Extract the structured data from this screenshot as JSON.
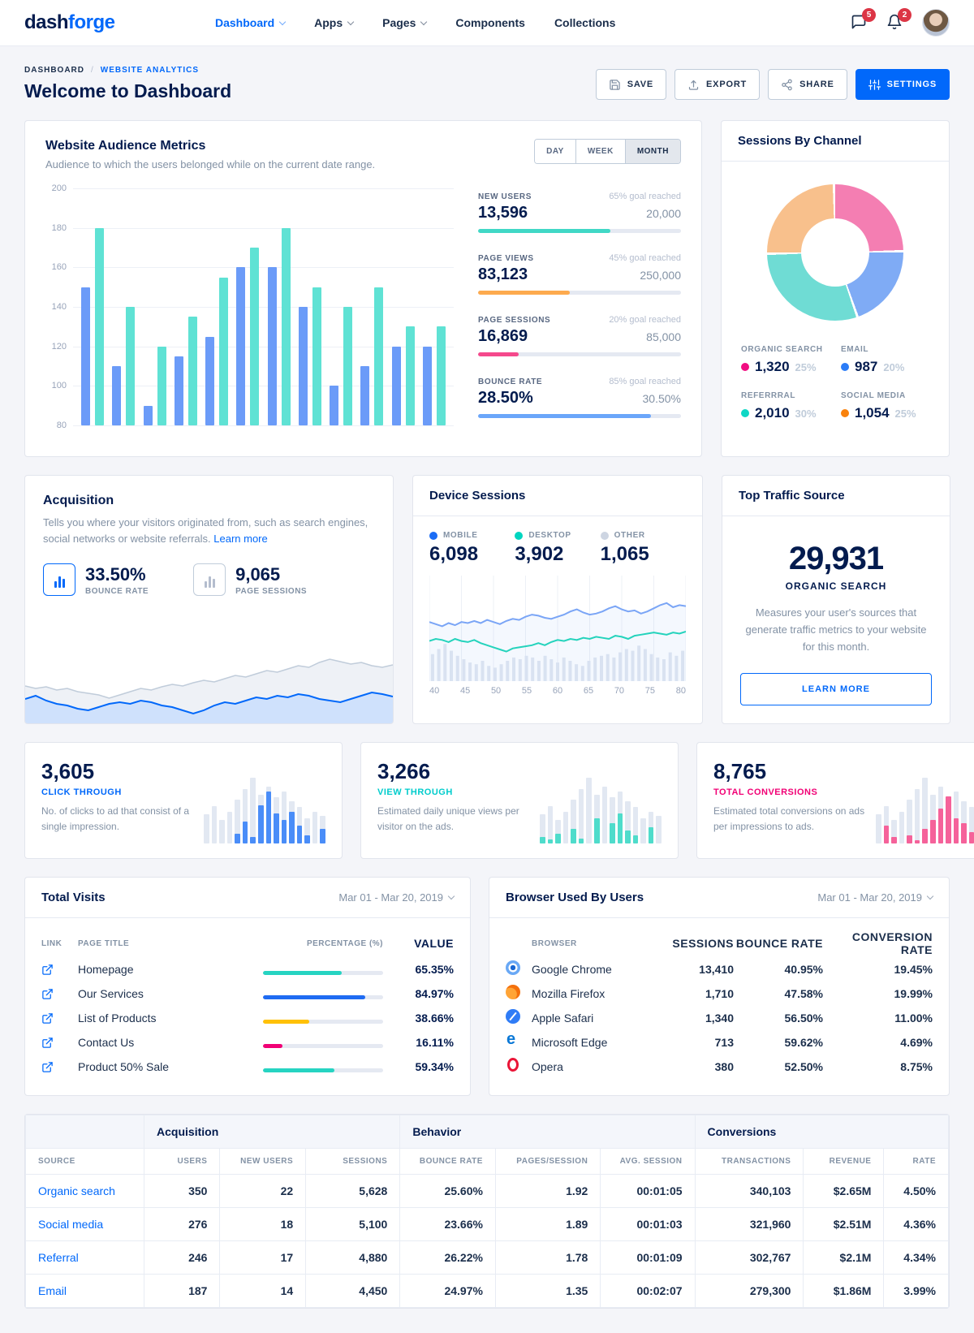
{
  "navbar": {
    "brand_dash": "dash",
    "brand_forge": "forge",
    "items": [
      {
        "label": "Dashboard",
        "active": true,
        "caret": true
      },
      {
        "label": "Apps",
        "active": false,
        "caret": true
      },
      {
        "label": "Pages",
        "active": false,
        "caret": true
      },
      {
        "label": "Components",
        "active": false,
        "caret": false
      },
      {
        "label": "Collections",
        "active": false,
        "caret": false
      }
    ],
    "messages_badge": "5",
    "notifications_badge": "2"
  },
  "page_header": {
    "breadcrumb_root": "DASHBOARD",
    "breadcrumb_sep": "/",
    "breadcrumb_current": "WEBSITE ANALYTICS",
    "title": "Welcome to Dashboard",
    "save_label": "SAVE",
    "export_label": "EXPORT",
    "share_label": "SHARE",
    "settings_label": "SETTINGS"
  },
  "audience": {
    "title": "Website Audience Metrics",
    "subtitle": "Audience to which the users belonged while on the current date range.",
    "toggles": [
      {
        "label": "DAY",
        "active": false
      },
      {
        "label": "WEEK",
        "active": false
      },
      {
        "label": "MONTH",
        "active": true
      }
    ],
    "metrics": [
      {
        "label": "NEW USERS",
        "goal": "65% goal reached",
        "value": "13,596",
        "target": "20,000",
        "pct": 65,
        "color": "#41d8c6"
      },
      {
        "label": "PAGE VIEWS",
        "goal": "45% goal reached",
        "value": "83,123",
        "target": "250,000",
        "pct": 45,
        "color": "#fdaa4e"
      },
      {
        "label": "PAGE SESSIONS",
        "goal": "20% goal reached",
        "value": "16,869",
        "target": "85,000",
        "pct": 20,
        "color": "#f5498c"
      },
      {
        "label": "BOUNCE RATE",
        "goal": "85% goal reached",
        "value": "28.50%",
        "target": "30.50%",
        "pct": 85,
        "color": "#6ba6fa"
      }
    ],
    "chart": {
      "type": "bar",
      "ylim": [
        80,
        200
      ],
      "yticks": [
        200,
        180,
        160,
        140,
        120,
        100,
        80
      ],
      "series": [
        {
          "name": "current",
          "color": "#6b9bf8",
          "values": [
            150,
            110,
            90,
            115,
            125,
            160,
            160,
            140,
            100,
            110,
            120,
            120
          ]
        },
        {
          "name": "previous",
          "color": "#5fe2d4",
          "values": [
            180,
            140,
            120,
            135,
            155,
            170,
            180,
            150,
            140,
            150,
            130,
            130
          ]
        }
      ]
    }
  },
  "channel": {
    "title": "Sessions By Channel",
    "chart": {
      "type": "donut",
      "slices": [
        {
          "label": "ORGANIC SEARCH",
          "value": "1,320",
          "pct_label": "25%",
          "pct": 25,
          "dot": "#f10d81",
          "slice": "#f47eb2"
        },
        {
          "label": "EMAIL",
          "value": "987",
          "pct_label": "20%",
          "pct": 20,
          "dot": "#2b7cf7",
          "slice": "#7fabf5"
        },
        {
          "label": "REFERRRAL",
          "value": "2,010",
          "pct_label": "30%",
          "pct": 30,
          "dot": "#0fd7c5",
          "slice": "#6fdcd4"
        },
        {
          "label": "SOCIAL MEDIA",
          "value": "1,054",
          "pct_label": "25%",
          "pct": 25,
          "dot": "#f9820c",
          "slice": "#f8c08c"
        }
      ]
    }
  },
  "acquisition": {
    "title": "Acquisition",
    "desc_before_link": "Tells you where your visitors originated from, such as search engines, social networks or website referrals. ",
    "link_label": "Learn more",
    "stats": [
      {
        "value": "33.50%",
        "label": "BOUNCE RATE",
        "accent": true
      },
      {
        "value": "9,065",
        "label": "PAGE SESSIONS",
        "accent": false
      }
    ],
    "chart": {
      "type": "area",
      "series": [
        {
          "name": "sessions",
          "line": "#c0ccda",
          "fill": "#eef1f6",
          "values": [
            46,
            43,
            45,
            41,
            43,
            39,
            37,
            35,
            31,
            35,
            39,
            43,
            41,
            45,
            48,
            46,
            50,
            53,
            51,
            55,
            59,
            57,
            61,
            65,
            63,
            67,
            71,
            69,
            75,
            79,
            76,
            73,
            75,
            71,
            69,
            72
          ]
        },
        {
          "name": "bounce",
          "line": "#0168fa",
          "fill": "#cfe1fc",
          "values": [
            30,
            34,
            28,
            24,
            22,
            18,
            16,
            20,
            24,
            26,
            24,
            28,
            26,
            22,
            20,
            16,
            12,
            16,
            22,
            26,
            24,
            28,
            32,
            30,
            34,
            32,
            36,
            34,
            30,
            28,
            26,
            30,
            34,
            38,
            36,
            33
          ]
        }
      ]
    }
  },
  "device": {
    "title": "Device Sessions",
    "legend": [
      {
        "label": "MOBILE",
        "value": "6,098",
        "dot": "#1a6cf5"
      },
      {
        "label": "DESKTOP",
        "value": "3,902",
        "dot": "#00d5c0"
      },
      {
        "label": "OTHER",
        "value": "1,065",
        "dot": "#cdd5e2"
      }
    ],
    "chart": {
      "type": "line+bar",
      "xticks": [
        40,
        45,
        50,
        55,
        60,
        65,
        70,
        75,
        80
      ],
      "mobile": [
        56,
        54,
        52,
        55,
        53,
        56,
        55,
        57,
        55,
        58,
        56,
        54,
        57,
        59,
        58,
        61,
        63,
        62,
        60,
        59,
        61,
        63,
        66,
        68,
        65,
        63,
        64,
        66,
        69,
        71,
        68,
        66,
        67,
        64,
        66,
        69,
        72,
        74,
        70,
        72,
        71
      ],
      "desktop": [
        38,
        40,
        39,
        37,
        40,
        38,
        37,
        39,
        36,
        34,
        32,
        30,
        28,
        31,
        32,
        33,
        34,
        36,
        34,
        37,
        39,
        38,
        40,
        39,
        41,
        40,
        42,
        41,
        40,
        43,
        42,
        40,
        43,
        44,
        45,
        46,
        45,
        44,
        46,
        45,
        47
      ],
      "other": [
        16,
        19,
        22,
        18,
        15,
        13,
        11,
        10,
        12,
        9,
        8,
        10,
        12,
        14,
        13,
        15,
        14,
        12,
        15,
        13,
        11,
        14,
        12,
        10,
        9,
        12,
        14,
        15,
        16,
        14,
        17,
        19,
        18,
        21,
        19,
        16,
        14,
        13,
        17,
        15,
        18
      ],
      "mobile_color": "#7aa5f6",
      "desktop_color": "#24d3bc",
      "other_color": "#e2e8f2"
    }
  },
  "traffic": {
    "title": "Top Traffic Source",
    "value": "29,931",
    "label": "ORGANIC SEARCH",
    "desc": "Measures your user's sources that generate traffic metrics to your website for this month.",
    "button_label": "LEARN MORE"
  },
  "stat_cards": [
    {
      "value": "3,605",
      "label": "CLICK THROUGH",
      "label_color": "#0168fa",
      "desc": "No. of clicks to ad that consist of a single impression.",
      "bar_color": "#4a8df8",
      "bg": [
        35,
        45,
        28,
        38,
        52,
        65,
        78,
        58,
        68,
        55,
        62,
        50,
        44,
        30,
        38,
        33
      ],
      "fg": [
        0,
        0,
        0,
        0,
        12,
        26,
        8,
        46,
        62,
        36,
        28,
        38,
        22,
        10,
        0,
        18
      ]
    },
    {
      "value": "3,266",
      "label": "VIEW THROUGH",
      "label_color": "#00cccc",
      "desc": "Estimated daily unique views per visitor on the ads.",
      "bar_color": "#4fdccb",
      "bg": [
        35,
        45,
        28,
        38,
        52,
        65,
        78,
        58,
        68,
        55,
        62,
        50,
        44,
        30,
        38,
        33
      ],
      "fg": [
        8,
        5,
        12,
        0,
        18,
        6,
        0,
        30,
        0,
        24,
        36,
        16,
        10,
        0,
        20,
        0
      ]
    },
    {
      "value": "8,765",
      "label": "TOTAL CONVERSIONS",
      "label_color": "#f10075",
      "desc": "Estimated total conversions on ads per impressions to ads.",
      "bar_color": "#f5629a",
      "bg": [
        35,
        45,
        28,
        38,
        52,
        65,
        78,
        58,
        68,
        55,
        62,
        50,
        44,
        30,
        38,
        33
      ],
      "fg": [
        0,
        22,
        8,
        0,
        10,
        4,
        18,
        28,
        42,
        56,
        30,
        24,
        14,
        6,
        0,
        0
      ]
    }
  ],
  "total_visits": {
    "title": "Total Visits",
    "date_range": "Mar 01 - Mar 20, 2019",
    "columns": [
      "LINK",
      "PAGE TITLE",
      "PERCENTAGE (%)",
      "VALUE"
    ],
    "rows": [
      {
        "page": "Homepage",
        "pct_label": "65.35%",
        "pct": 65.35,
        "color": "#26d4c2"
      },
      {
        "page": "Our Services",
        "pct_label": "84.97%",
        "pct": 84.97,
        "color": "#1f6bf2"
      },
      {
        "page": "List of Products",
        "pct_label": "38.66%",
        "pct": 38.66,
        "color": "#ffc107"
      },
      {
        "page": "Contact Us",
        "pct_label": "16.11%",
        "pct": 16.11,
        "color": "#f10075"
      },
      {
        "page": "Product 50% Sale",
        "pct_label": "59.34%",
        "pct": 59.34,
        "color": "#26d4c2"
      }
    ]
  },
  "browsers": {
    "title": "Browser Used By Users",
    "date_range": "Mar 01 - Mar 20, 2019",
    "columns": [
      "BROWSER",
      "SESSIONS",
      "BOUNCE RATE",
      "CONVERSION RATE"
    ],
    "rows": [
      {
        "browser": "Google Chrome",
        "icon": "chrome",
        "sessions": "13,410",
        "bounce": "40.95%",
        "conversion": "19.45%"
      },
      {
        "browser": "Mozilla Firefox",
        "icon": "firefox",
        "sessions": "1,710",
        "bounce": "47.58%",
        "conversion": "19.99%"
      },
      {
        "browser": "Apple Safari",
        "icon": "safari",
        "sessions": "1,340",
        "bounce": "56.50%",
        "conversion": "11.00%"
      },
      {
        "browser": "Microsoft Edge",
        "icon": "edge",
        "sessions": "713",
        "bounce": "59.62%",
        "conversion": "4.69%"
      },
      {
        "browser": "Opera",
        "icon": "opera",
        "sessions": "380",
        "bounce": "52.50%",
        "conversion": "8.75%"
      }
    ]
  },
  "sources_table": {
    "groups": [
      "Acquisition",
      "Behavior",
      "Conversions"
    ],
    "columns": [
      "SOURCE",
      "USERS",
      "NEW USERS",
      "SESSIONS",
      "BOUNCE RATE",
      "PAGES/SESSION",
      "AVG. SESSION",
      "TRANSACTIONS",
      "REVENUE",
      "RATE"
    ],
    "rows": [
      [
        "Organic search",
        "350",
        "22",
        "5,628",
        "25.60%",
        "1.92",
        "00:01:05",
        "340,103",
        "$2.65M",
        "4.50%"
      ],
      [
        "Social media",
        "276",
        "18",
        "5,100",
        "23.66%",
        "1.89",
        "00:01:03",
        "321,960",
        "$2.51M",
        "4.36%"
      ],
      [
        "Referral",
        "246",
        "17",
        "4,880",
        "26.22%",
        "1.78",
        "00:01:09",
        "302,767",
        "$2.1M",
        "4.34%"
      ],
      [
        "Email",
        "187",
        "14",
        "4,450",
        "24.97%",
        "1.35",
        "00:02:07",
        "279,300",
        "$1.86M",
        "3.99%"
      ]
    ]
  }
}
